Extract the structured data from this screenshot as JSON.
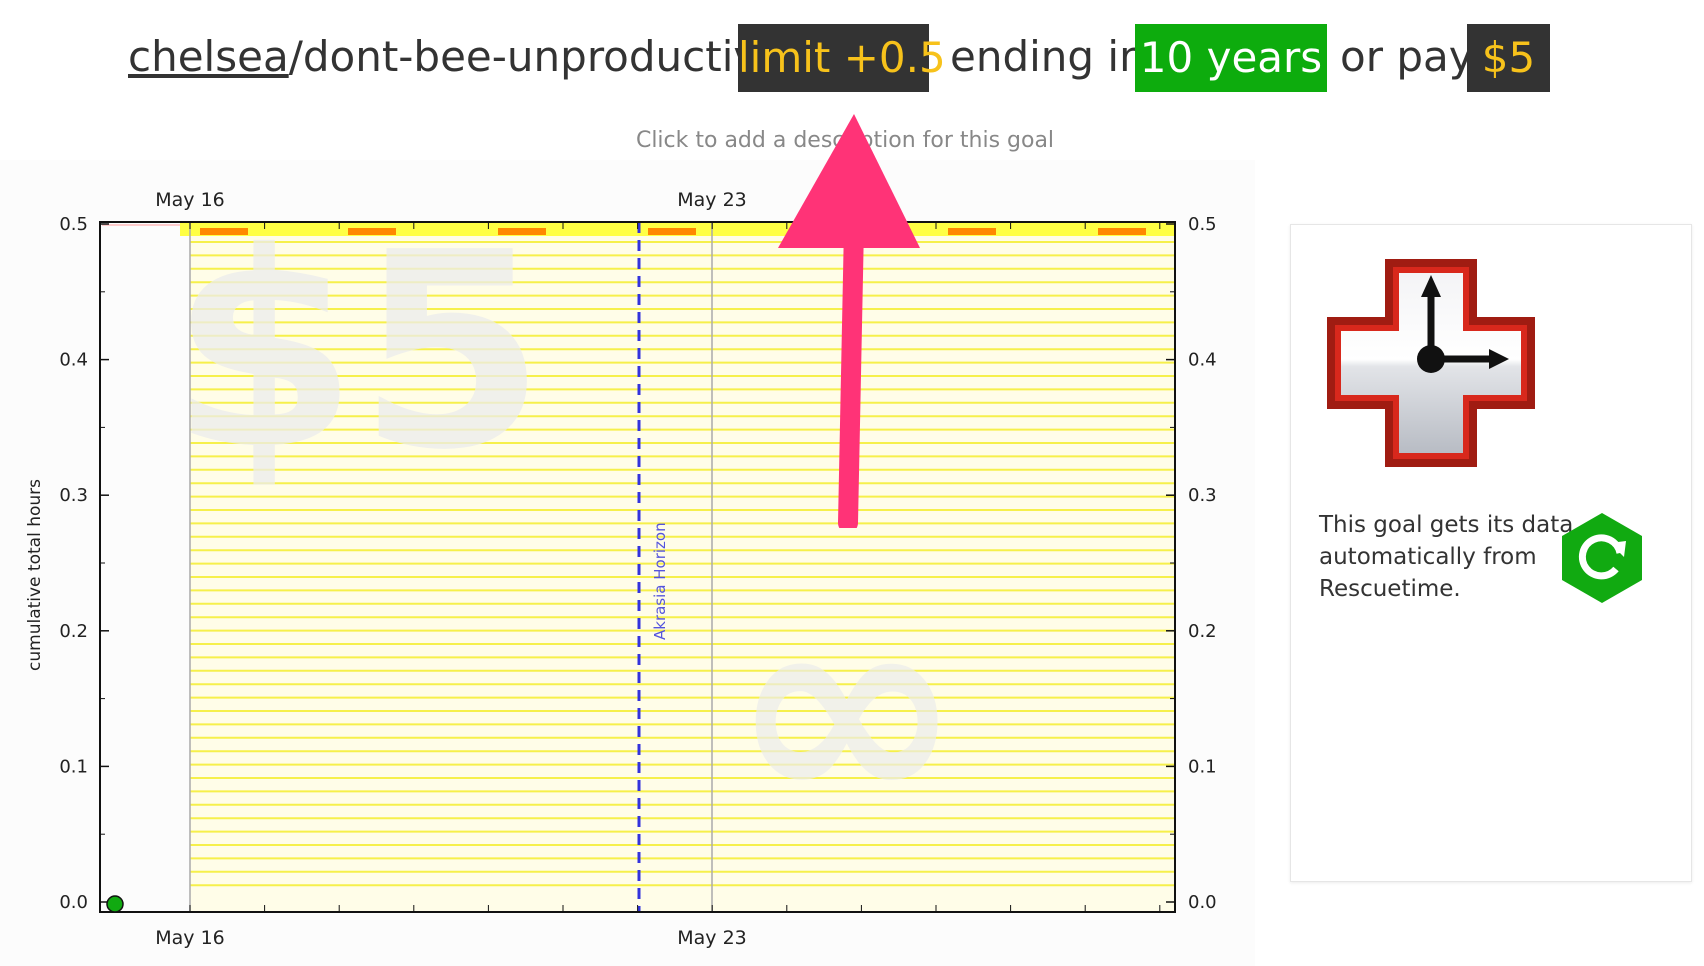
{
  "header": {
    "username": "chelsea",
    "goal_slug": "/dont-bee-unproductive:",
    "limit_badge": "limit +0.5",
    "ending_text": "ending in",
    "duration_badge": "10 years",
    "or_pay_text": "or pay",
    "pledge_badge": "$5"
  },
  "description_placeholder": "Click to add a description for this goal",
  "sidebar": {
    "data_source_text": "This goal gets its data automatically from Rescuetime.",
    "logo_icon": "rescuetime-clock-cross-icon",
    "refresh_icon": "refresh-hexagon-icon"
  },
  "colors": {
    "badge_dark": "#333333",
    "badge_text": "#f7c21b",
    "badge_green": "#0dac0d",
    "road": "#ffff33",
    "horizon": "#3333dd",
    "arrow": "#ff3377"
  },
  "chart_data": {
    "type": "scatter",
    "ylabel": "cumulative total hours",
    "ylim": [
      0.0,
      0.5
    ],
    "y_ticks": [
      "0.0",
      "0.1",
      "0.2",
      "0.3",
      "0.4",
      "0.5"
    ],
    "x_ticks": [
      "May 16",
      "May 23"
    ],
    "watermark_pledge": "$5",
    "watermark_time": "∞",
    "horizon_label": "Akrasia Horizon",
    "datapoints": [
      {
        "x": "May 15",
        "y": 0.0
      }
    ],
    "road_limit": 0.5
  }
}
